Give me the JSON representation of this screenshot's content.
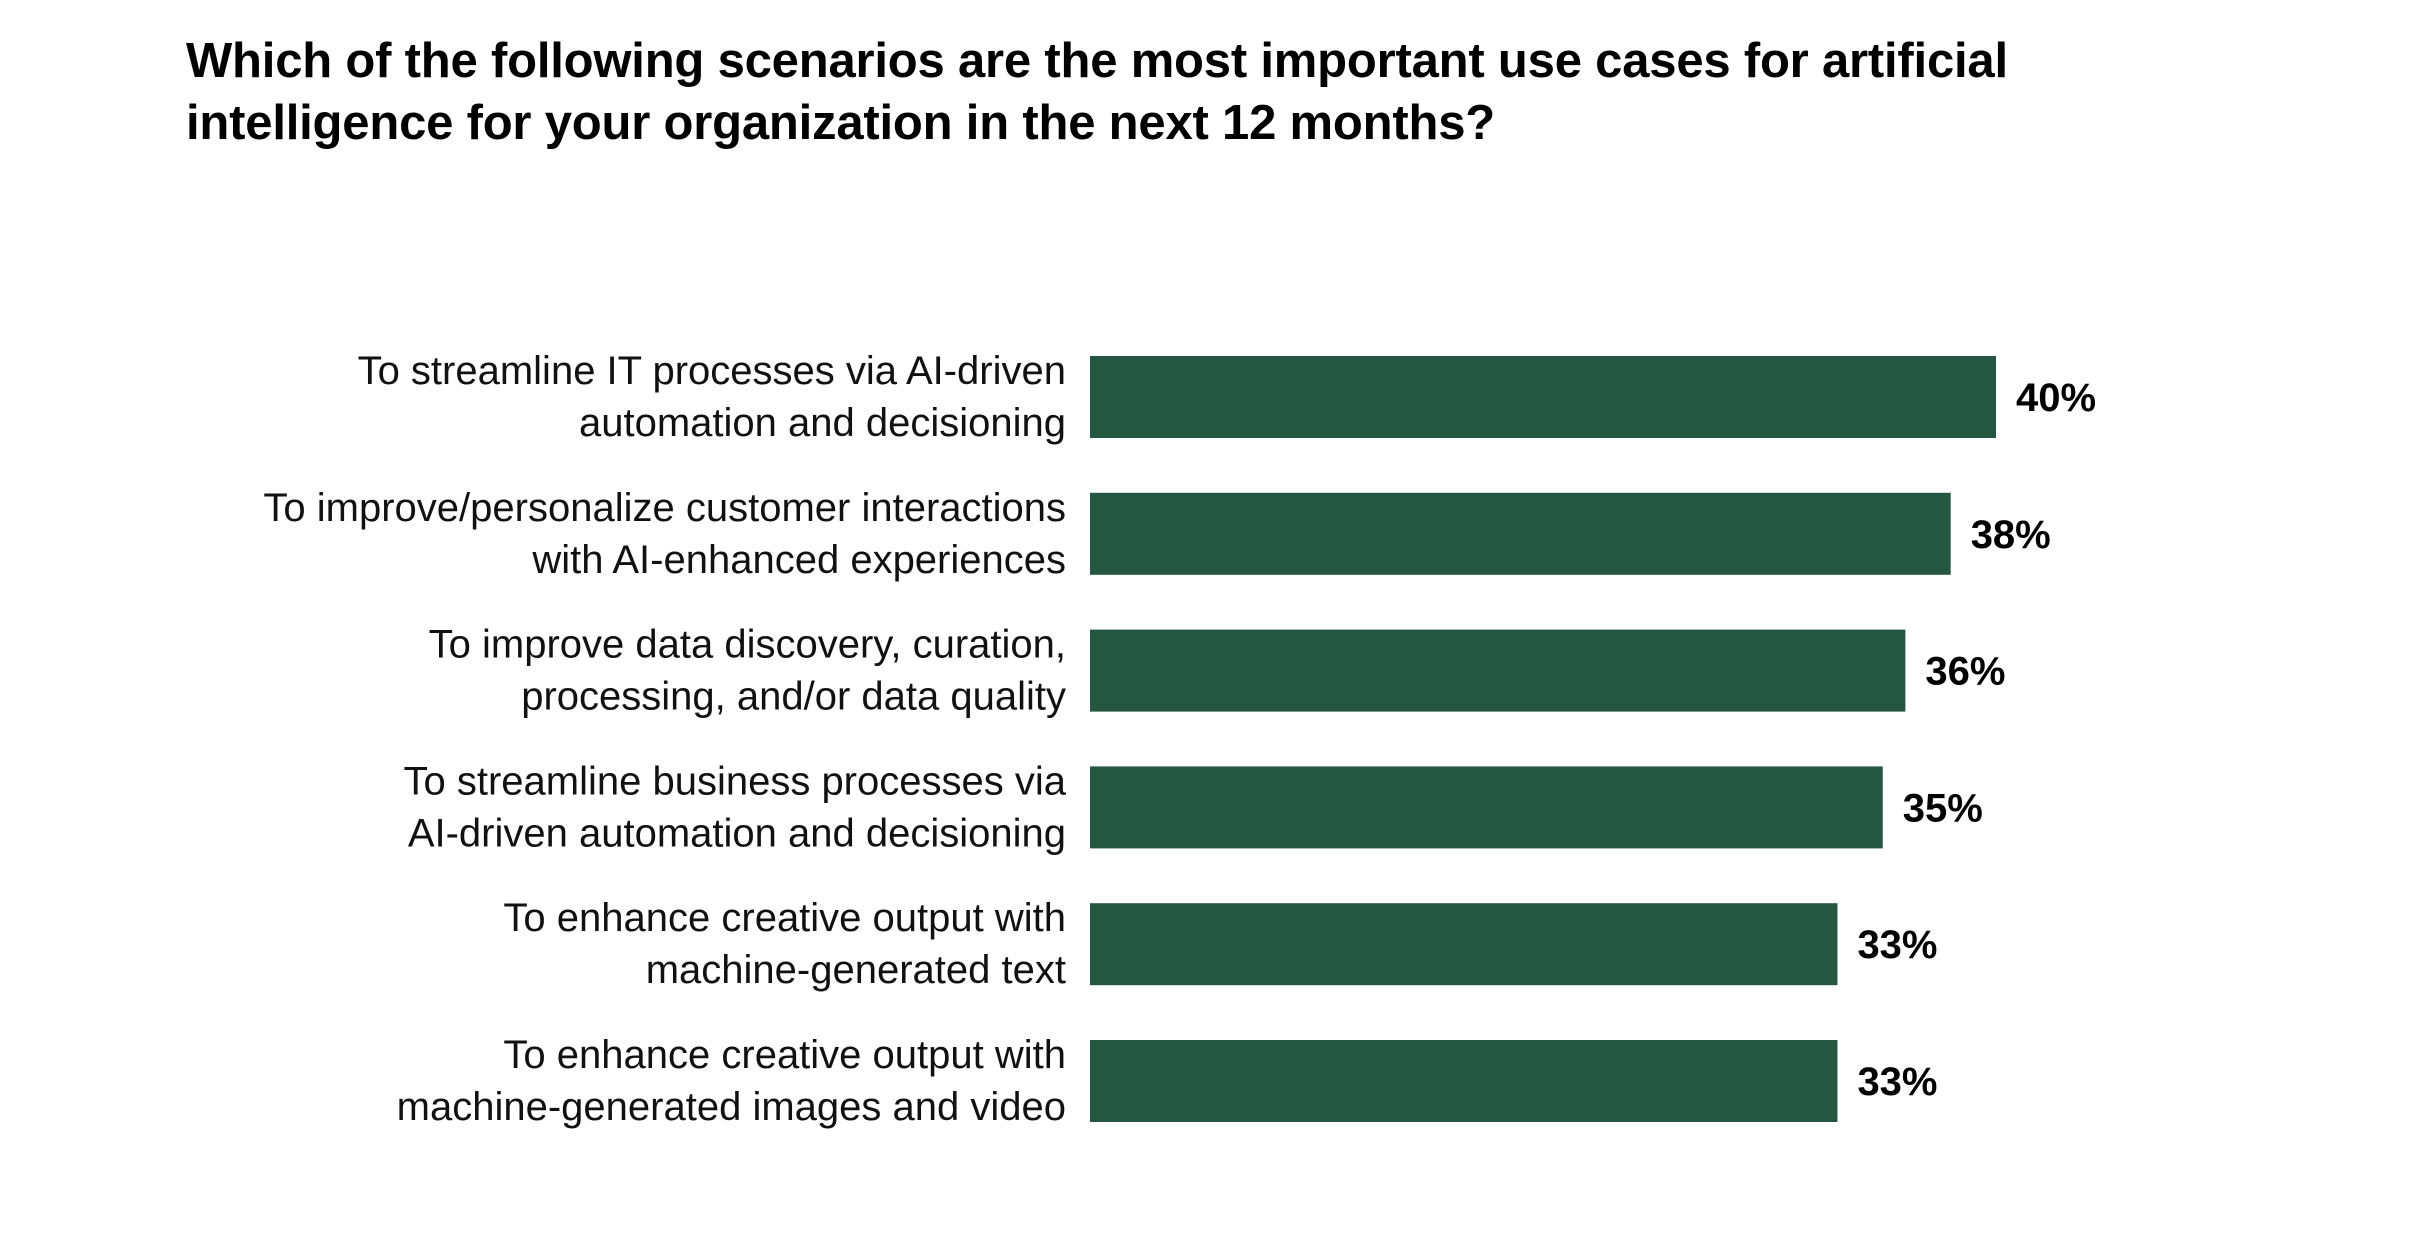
{
  "chart_data": {
    "type": "bar",
    "orientation": "horizontal",
    "title_lines": [
      "Which of the following scenarios are the most important use cases for artificial",
      "intelligence for your organization in the next 12 months?"
    ],
    "categories": [
      [
        "To streamline IT processes via AI-driven",
        "automation and decisioning"
      ],
      [
        "To improve/personalize customer interactions",
        "with AI-enhanced experiences"
      ],
      [
        "To improve data discovery, curation,",
        "processing, and/or data quality"
      ],
      [
        "To streamline business processes via",
        "AI-driven automation and decisioning"
      ],
      [
        "To enhance creative output with",
        "machine-generated text"
      ],
      [
        "To enhance creative output with",
        "machine-generated images and video"
      ]
    ],
    "values": [
      40,
      38,
      36,
      35,
      33,
      33
    ],
    "value_labels": [
      "40%",
      "38%",
      "36%",
      "35%",
      "33%",
      "33%"
    ],
    "unit": "%",
    "xlim": [
      0,
      40
    ],
    "grid": false,
    "legend": "none",
    "bar_color": "#255641"
  }
}
